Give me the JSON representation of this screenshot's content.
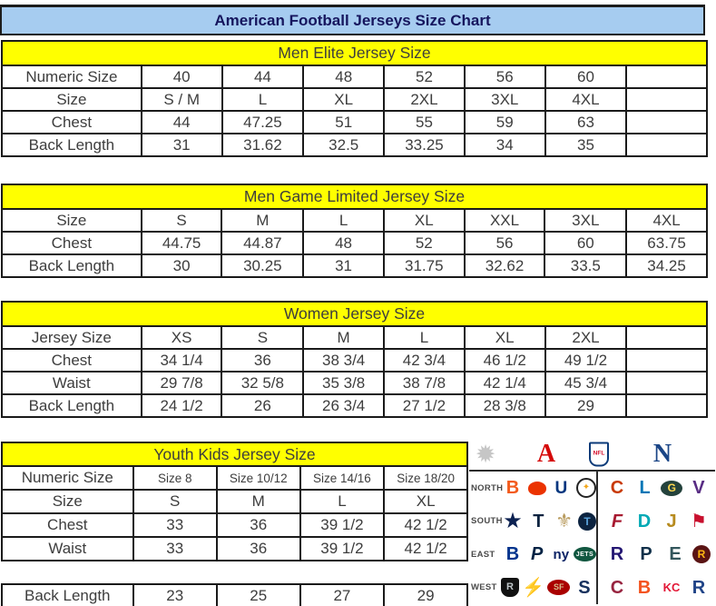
{
  "title": "American Football Jerseys Size Chart",
  "colors": {
    "title_bar_bg": "#a6ccf0",
    "title_text": "#16165e",
    "section_header_bg": "#ffff00",
    "table_text": "#3d3d3d",
    "table_border": "#1a1a1a",
    "afc_red": "#d50a0a",
    "nfc_blue": "#1a4586"
  },
  "tables": {
    "men_elite": {
      "header": "Men Elite Jersey Size",
      "rows": [
        {
          "label": "Numeric Size",
          "values": [
            "40",
            "44",
            "48",
            "52",
            "56",
            "60",
            ""
          ]
        },
        {
          "label": "Size",
          "values": [
            "S / M",
            "L",
            "XL",
            "2XL",
            "3XL",
            "4XL",
            ""
          ]
        },
        {
          "label": "Chest",
          "values": [
            "44",
            "47.25",
            "51",
            "55",
            "59",
            "63",
            ""
          ]
        },
        {
          "label": "Back Length",
          "values": [
            "31",
            "31.62",
            "32.5",
            "33.25",
            "34",
            "35",
            ""
          ]
        }
      ]
    },
    "men_game_limited": {
      "header": "Men Game Limited Jersey Size",
      "rows": [
        {
          "label": "Size",
          "values": [
            "S",
            "M",
            "L",
            "XL",
            "XXL",
            "3XL",
            "4XL"
          ]
        },
        {
          "label": "Chest",
          "values": [
            "44.75",
            "44.87",
            "48",
            "52",
            "56",
            "60",
            "63.75"
          ]
        },
        {
          "label": "Back Length",
          "values": [
            "30",
            "30.25",
            "31",
            "31.75",
            "32.62",
            "33.5",
            "34.25"
          ]
        }
      ]
    },
    "women": {
      "header": "Women Jersey Size",
      "rows": [
        {
          "label": "Jersey Size",
          "values": [
            "XS",
            "S",
            "M",
            "L",
            "XL",
            "2XL",
            ""
          ]
        },
        {
          "label": "Chest",
          "values": [
            "34 1/4",
            "36",
            "38 3/4",
            "42 3/4",
            "46 1/2",
            "49 1/2",
            ""
          ]
        },
        {
          "label": "Waist",
          "values": [
            "29 7/8",
            "32 5/8",
            "35 3/8",
            "38 7/8",
            "42 1/4",
            "45 3/4",
            ""
          ]
        },
        {
          "label": "Back Length",
          "values": [
            "24 1/2",
            "26",
            "26 3/4",
            "27 1/2",
            "28 3/8",
            "29",
            ""
          ]
        }
      ]
    },
    "youth": {
      "header": "Youth Kids Jersey Size",
      "rows": [
        {
          "label": "Numeric Size",
          "values": [
            "Size 8",
            "Size 10/12",
            "Size 14/16",
            "Size 18/20"
          ],
          "small": true
        },
        {
          "label": "Size",
          "values": [
            "S",
            "M",
            "L",
            "XL"
          ]
        },
        {
          "label": "Chest",
          "values": [
            "33",
            "36",
            "39 1/2",
            "42 1/2"
          ]
        },
        {
          "label": "Waist",
          "values": [
            "33",
            "36",
            "39 1/2",
            "42 1/2"
          ]
        },
        {
          "label": "Back Length",
          "values": [
            "23",
            "25",
            "27",
            "29"
          ],
          "gap_before": true,
          "tall": true
        }
      ]
    }
  },
  "logos": {
    "conferences": [
      {
        "name": "starburst",
        "glyph": "✹",
        "style": "color:#c6c6c6;font-size:27px;left:4px;width:28px;height:30px"
      },
      {
        "name": "afc",
        "glyph": "A",
        "style": "color:#d50a0a;font-family:'Liberation Serif',serif;font-weight:bold;font-size:28px;left:71px;width:28px;height:30px"
      },
      {
        "name": "nfl-shield",
        "glyph": "NFL",
        "cls": "shield",
        "style": "left:132px"
      },
      {
        "name": "nfc",
        "glyph": "N",
        "style": "color:#1a4586;font-family:'Liberation Serif',serif;font-weight:bold;font-size:28px;left:199px;width:28px;height:30px"
      }
    ],
    "divisions": [
      {
        "label": "NORTH",
        "afc": [
          {
            "name": "bengals",
            "glyph": "B",
            "style": "color:#f35b1c;font-weight:800;font-size:20px"
          },
          {
            "name": "browns",
            "glyph": "",
            "style": "background:#eb3300;width:20px;height:15px;border-radius:50% 50% 45% 45%"
          },
          {
            "name": "colts",
            "glyph": "U",
            "style": "color:#02357e;font-weight:800;font-size:19px"
          },
          {
            "name": "steelers",
            "glyph": "✦",
            "style": "background:#fff;border:2px solid #222;border-radius:50%;width:18px;height:18px;color:#f2a71c;font-size:10px"
          }
        ],
        "nfc": [
          {
            "name": "bears",
            "glyph": "C",
            "style": "color:#c83803;font-weight:800;font-size:20px"
          },
          {
            "name": "lions",
            "glyph": "L",
            "style": "color:#0076b6;font-weight:800;font-size:20px"
          },
          {
            "name": "packers",
            "glyph": "G",
            "style": "background:#24423c;color:#ffd94f;border-radius:50%;width:24px;height:17px;font-size:12px;font-weight:800"
          },
          {
            "name": "vikings",
            "glyph": "V",
            "style": "color:#582c83;font-weight:800;font-size:20px"
          }
        ]
      },
      {
        "label": "SOUTH",
        "afc": [
          {
            "name": "cowboys",
            "glyph": "★",
            "style": "color:#0b2151;font-size:24px"
          },
          {
            "name": "texans",
            "glyph": "T",
            "style": "color:#0b2340;font-weight:800;font-size:20px"
          },
          {
            "name": "saints",
            "glyph": "⚜",
            "style": "color:#b99c5f;font-size:21px"
          },
          {
            "name": "titans",
            "glyph": "T",
            "style": "background:#0c2340;color:#5ba3dc;border-radius:50%;width:20px;height:20px;font-size:12px;font-weight:800"
          }
        ],
        "nfc": [
          {
            "name": "falcons",
            "glyph": "F",
            "style": "color:#a71930;font-weight:800;font-style:italic;font-size:20px"
          },
          {
            "name": "dolphins",
            "glyph": "D",
            "style": "color:#00a9b5;font-weight:800;font-size:20px"
          },
          {
            "name": "jaguars",
            "glyph": "J",
            "style": "color:#b78b1f;font-weight:800;font-size:20px"
          },
          {
            "name": "buccaneers",
            "glyph": "⚑",
            "style": "color:#c8102e;font-size:20px"
          }
        ]
      },
      {
        "label": "EAST",
        "afc": [
          {
            "name": "bills",
            "glyph": "B",
            "style": "color:#00338d;font-weight:800;font-size:20px"
          },
          {
            "name": "patriots",
            "glyph": "P",
            "style": "color:#002244;font-weight:800;font-style:italic;font-size:20px"
          },
          {
            "name": "giants",
            "glyph": "ny",
            "style": "color:#0b2265;font-weight:800;font-size:15px"
          },
          {
            "name": "jets",
            "glyph": "JETS",
            "style": "background:#115740;color:#fff;border-radius:50%;width:25px;height:16px;font-size:7px;font-weight:800;letter-spacing:0.5px"
          }
        ],
        "nfc": [
          {
            "name": "ravens",
            "glyph": "R",
            "style": "color:#241773;font-weight:800;font-size:20px"
          },
          {
            "name": "panthers",
            "glyph": "P",
            "style": "color:#11304a;font-weight:800;font-size:20px"
          },
          {
            "name": "eagles",
            "glyph": "E",
            "style": "color:#33565c;font-weight:800;font-size:20px"
          },
          {
            "name": "redskins",
            "glyph": "R",
            "style": "background:#5a1414;color:#ffb612;border-radius:50%;width:20px;height:20px;font-size:12px;font-weight:800"
          }
        ]
      },
      {
        "label": "WEST",
        "afc": [
          {
            "name": "raiders",
            "glyph": "R",
            "style": "background:#111;color:#bfc6c9;width:20px;height:21px;font-size:11px;font-weight:800;border-radius:3px 3px 9px 9px"
          },
          {
            "name": "chargers",
            "glyph": "⚡",
            "style": "color:#f7b911;font-size:20px"
          },
          {
            "name": "49ers",
            "glyph": "SF",
            "style": "background:#aa0000;color:#d6bd8c;border-radius:50%;width:25px;height:17px;font-size:9px;font-weight:800"
          },
          {
            "name": "seahawks",
            "glyph": "S",
            "style": "color:#16315d;font-weight:800;font-size:20px"
          }
        ],
        "nfc": [
          {
            "name": "cardinals",
            "glyph": "C",
            "style": "color:#97233f;font-weight:800;font-size:20px"
          },
          {
            "name": "broncos",
            "glyph": "B",
            "style": "color:#f4541f;font-weight:800;font-size:20px"
          },
          {
            "name": "chiefs",
            "glyph": "KC",
            "style": "color:#e31837;font-weight:800;font-size:13px"
          },
          {
            "name": "rams",
            "glyph": "R",
            "style": "color:#1f4387;font-weight:800;font-size:20px"
          }
        ]
      }
    ]
  }
}
